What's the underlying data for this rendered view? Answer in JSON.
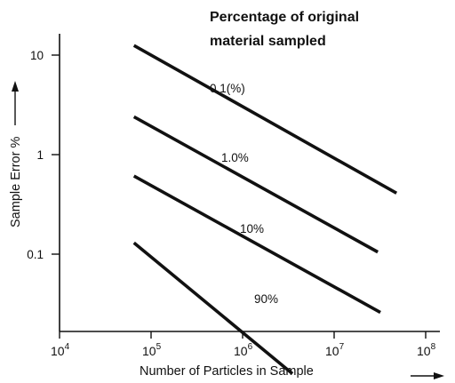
{
  "chart_data": {
    "type": "line",
    "title_lines": [
      "Percentage of original",
      "material sampled"
    ],
    "xlabel": "Number of Particles in Sample",
    "ylabel": "Sample Error %",
    "x_scale": "log",
    "y_scale": "log",
    "xlim": [
      10000,
      100000000
    ],
    "ylim": [
      0.03,
      20
    ],
    "x_ticks": [
      {
        "base": "10",
        "exp": "4"
      },
      {
        "base": "10",
        "exp": "5"
      },
      {
        "base": "10",
        "exp": "6"
      },
      {
        "base": "10",
        "exp": "7"
      },
      {
        "base": "10",
        "exp": "8"
      }
    ],
    "y_ticks": [
      "10",
      "1",
      "0.1"
    ],
    "grid": false,
    "series": [
      {
        "name": "0.1(%)",
        "x": [
          65000,
          48000000
        ],
        "y": [
          12.5,
          0.41
        ]
      },
      {
        "name": "1.0%",
        "x": [
          65000,
          30000000
        ],
        "y": [
          2.4,
          0.105
        ]
      },
      {
        "name": "10%",
        "x": [
          65000,
          32000000
        ],
        "y": [
          0.61,
          0.026
        ]
      },
      {
        "name": "90%",
        "x": [
          65000,
          3500000
        ],
        "y": [
          0.13,
          0.0063
        ]
      }
    ]
  }
}
